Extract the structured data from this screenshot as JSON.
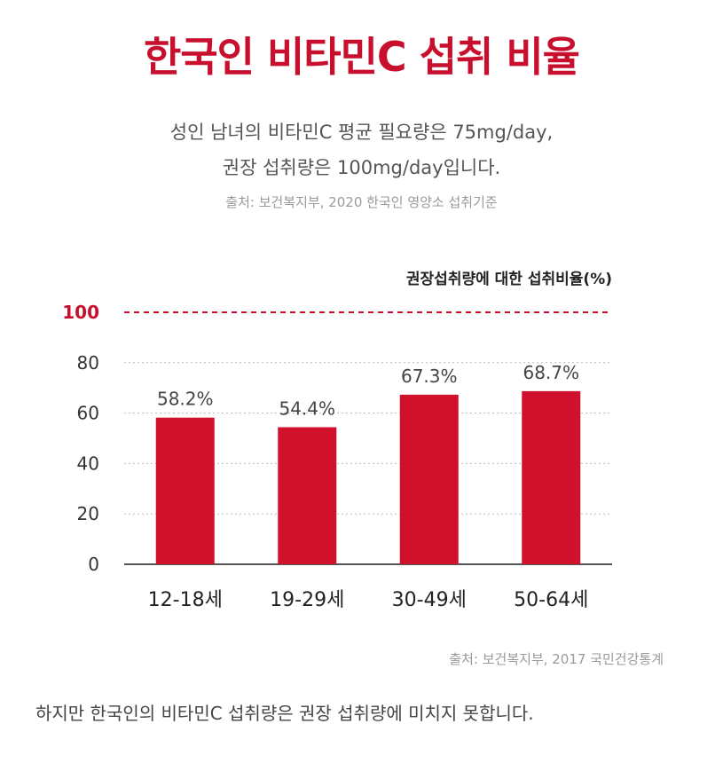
{
  "header": {
    "title": "한국인 비타민C 섭취 비율",
    "subtitle_line1": "성인 남녀의 비타민C 평균 필요량은 75mg/day,",
    "subtitle_line2": "권장 섭취량은 100mg/day입니다.",
    "source": "출처: 보건복지부, 2020 한국인 영양소 섭취기준"
  },
  "chart_data": {
    "type": "bar",
    "title": "권장섭취량에 대한 섭취비율(%)",
    "categories": [
      "12-18세",
      "19-29세",
      "30-49세",
      "50-64세"
    ],
    "values": [
      58.2,
      54.4,
      67.3,
      68.7
    ],
    "value_labels": [
      "58.2%",
      "54.4%",
      "67.3%",
      "68.7%"
    ],
    "y_ticks": [
      "0",
      "20",
      "40",
      "60",
      "80",
      "100"
    ],
    "ylim": [
      0,
      100
    ],
    "reference_line": 100,
    "grid": true,
    "colors": {
      "bar": "#d0112b",
      "reference": "#c8102e",
      "grid": "#bbbbbb",
      "axis": "#555555"
    }
  },
  "footer": {
    "source": "출처: 보건복지부, 2017 국민건강통계",
    "note": "하지만 한국인의 비타민C 섭취량은 권장 섭취량에 미치지 못합니다."
  }
}
